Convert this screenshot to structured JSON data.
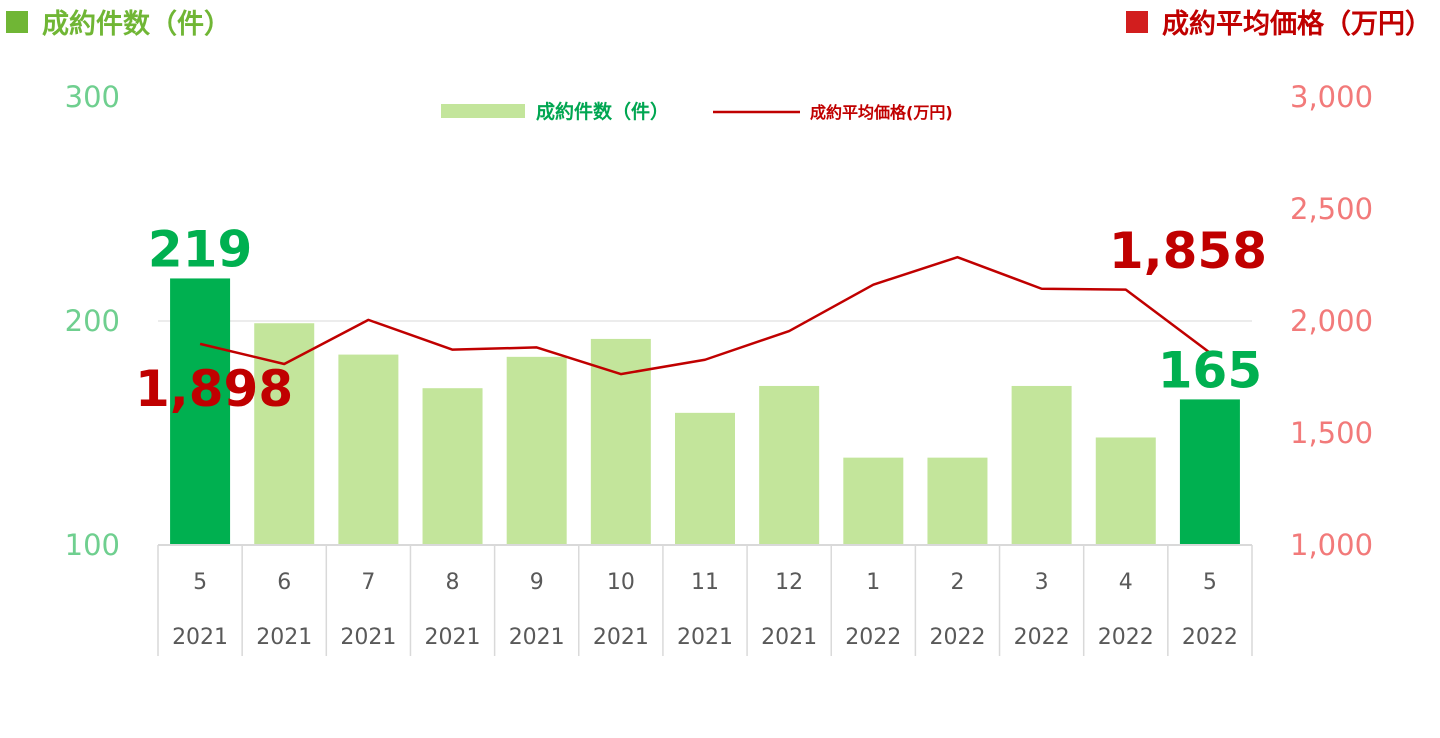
{
  "titles": {
    "left": "成約件数（件）",
    "right": "成約平均価格（万円）"
  },
  "colors": {
    "bar": "#c3e59b",
    "bar_highlight": "#00b050",
    "line": "#c00000",
    "left_axis_text": "#6fcf8f",
    "right_axis_text": "#f27a7a",
    "left_title": "#70b635",
    "right_title": "#c00000"
  },
  "chart_data": {
    "type": "bar+line",
    "categories": [
      "5",
      "6",
      "7",
      "8",
      "9",
      "10",
      "11",
      "12",
      "1",
      "2",
      "3",
      "4",
      "5"
    ],
    "years": [
      "2021",
      "2021",
      "2021",
      "2021",
      "2021",
      "2021",
      "2021",
      "2021",
      "2022",
      "2022",
      "2022",
      "2022",
      "2022"
    ],
    "series": [
      {
        "name": "成約件数（件）",
        "type": "bar",
        "axis": "left",
        "values": [
          219,
          199,
          185,
          170,
          184,
          192,
          159,
          171,
          139,
          139,
          171,
          148,
          165
        ],
        "highlighted": [
          0,
          12
        ]
      },
      {
        "name": "成約平均価格(万円)",
        "type": "line",
        "axis": "right",
        "values": [
          1898,
          1808,
          2005,
          1872,
          1882,
          1763,
          1827,
          1955,
          2162,
          2285,
          2144,
          2140,
          1858
        ]
      }
    ],
    "left_axis": {
      "min": 100,
      "max": 300,
      "ticks": [
        "100",
        "200",
        "300"
      ]
    },
    "right_axis": {
      "min": 1000,
      "max": 3000,
      "ticks": [
        "1,000",
        "1,500",
        "2,000",
        "2,500",
        "3,000"
      ]
    },
    "data_labels": [
      {
        "series": 0,
        "index": 0,
        "text": "219"
      },
      {
        "series": 0,
        "index": 12,
        "text": "165"
      },
      {
        "series": 1,
        "index": 0,
        "text": "1,898"
      },
      {
        "series": 1,
        "index": 12,
        "text": "1,858"
      }
    ],
    "gridlines": [
      200
    ],
    "legend_position": "top-center"
  }
}
